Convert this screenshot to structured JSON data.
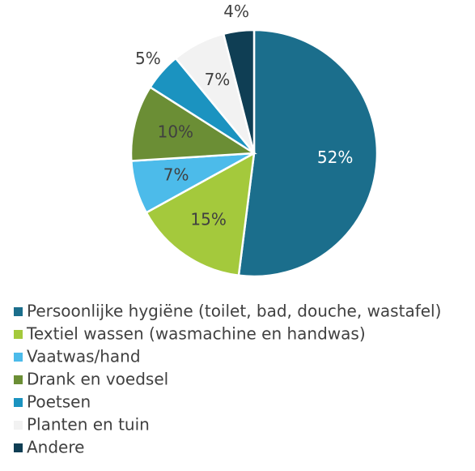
{
  "chart_data": {
    "type": "pie",
    "categories": [
      "Persoonlijke hygiëne (toilet, bad, douche, wastafel)",
      "Textiel wassen (wasmachine en handwas)",
      "Vaatwas/hand",
      "Drank en voedsel",
      "Poetsen",
      "Planten en tuin",
      "Andere"
    ],
    "values": [
      52,
      15,
      7,
      10,
      5,
      7,
      4
    ],
    "value_labels": [
      "52%",
      "15%",
      "7%",
      "10%",
      "5%",
      "7%",
      "4%"
    ],
    "colors": [
      "#1b6e8c",
      "#a4c93c",
      "#4cbbea",
      "#6b8e35",
      "#1b93c0",
      "#f2f2f2",
      "#0f3e54"
    ],
    "legend": "bottom"
  }
}
